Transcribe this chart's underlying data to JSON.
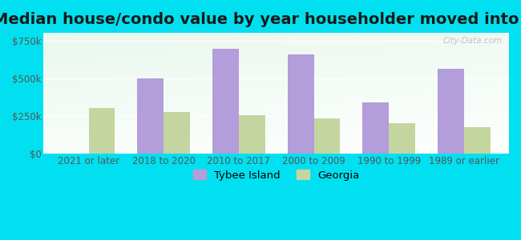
{
  "title": "Median house/condo value by year householder moved into unit",
  "categories": [
    "2021 or later",
    "2018 to 2020",
    "2010 to 2017",
    "2000 to 2009",
    "1990 to 1999",
    "1989 or earlier"
  ],
  "tybee_island": [
    0,
    497000,
    693000,
    660000,
    340000,
    560000
  ],
  "georgia": [
    305000,
    275000,
    255000,
    237000,
    205000,
    175000
  ],
  "tybee_color": "#b39ddb",
  "georgia_color": "#c5d5a0",
  "background_outer": "#00e0f0",
  "yticks": [
    0,
    250000,
    500000,
    750000
  ],
  "ytick_labels": [
    "$0",
    "$250k",
    "$500k",
    "$750k"
  ],
  "ylim": [
    0,
    800000
  ],
  "bar_width": 0.35,
  "title_fontsize": 14,
  "tick_fontsize": 8.5,
  "legend_fontsize": 9.5,
  "watermark_text": "City-Data.com"
}
